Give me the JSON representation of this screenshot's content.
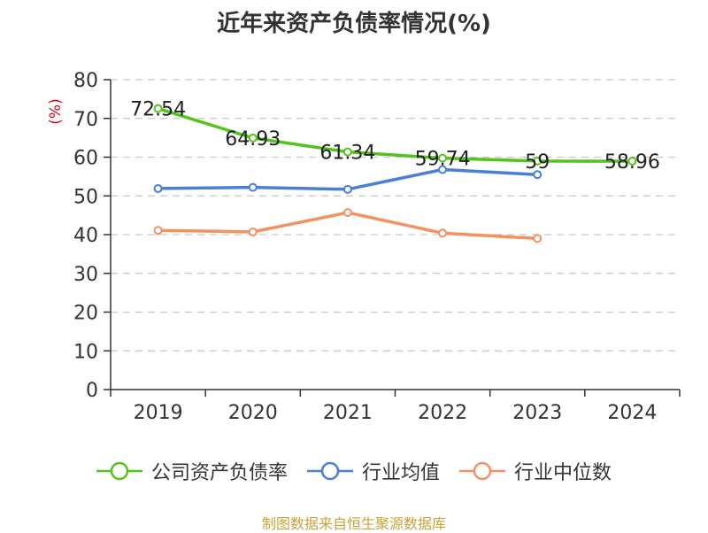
{
  "chart_data": {
    "type": "line",
    "title": "近年来资产负债率情况(%)",
    "ylabel": "(%)",
    "xlabel": "",
    "categories": [
      "2019",
      "2020",
      "2021",
      "2022",
      "2023",
      "2024"
    ],
    "ylim": [
      0,
      80
    ],
    "yticks": [
      0,
      10,
      20,
      30,
      40,
      50,
      60,
      70,
      80
    ],
    "grid": true,
    "legend_position": "bottom",
    "series": [
      {
        "name": "公司资产负债率",
        "color": "#52c41a",
        "values": [
          72.54,
          64.93,
          61.34,
          59.74,
          59,
          58.96
        ],
        "labels": [
          "72.54",
          "64.93",
          "61.34",
          "59.74",
          "59",
          "58.96"
        ]
      },
      {
        "name": "行业均值",
        "color": "#4a7fd6",
        "values": [
          51.9,
          52.2,
          51.7,
          56.8,
          55.5,
          null
        ]
      },
      {
        "name": "行业中位数",
        "color": "#f39163",
        "values": [
          41.1,
          40.7,
          45.7,
          40.4,
          39.0,
          null
        ]
      }
    ]
  },
  "source": "制图数据来自恒生聚源数据库"
}
